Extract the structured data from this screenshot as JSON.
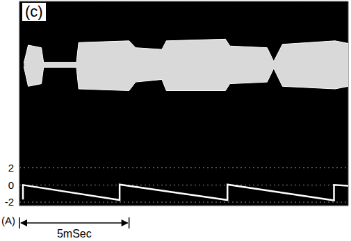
{
  "chart_data": {
    "type": "line",
    "title": "(c)",
    "y_label": "(A)",
    "xlim": [
      0,
      15
    ],
    "ylim": [
      -2.4,
      21.4
    ],
    "yticks": [
      -2,
      0,
      2
    ],
    "tick_labels": "y",
    "grid": true,
    "series": [
      {
        "type": "area",
        "color": "#ffffff",
        "x": [
          0.2,
          0.4,
          1.0,
          1.1,
          2.6,
          2.7,
          5.0,
          5.3,
          6.5,
          6.7,
          9.4,
          9.6,
          11.3,
          11.6,
          12.0,
          14.4,
          15.0
        ],
        "values": [
          [
            13.8,
            14.2
          ],
          [
            11.5,
            16.3
          ],
          [
            11.8,
            16.0
          ],
          [
            13.7,
            14.3
          ],
          [
            13.7,
            14.3
          ],
          [
            11.2,
            16.6
          ],
          [
            11.0,
            16.8
          ],
          [
            12.0,
            16.0
          ],
          [
            12.3,
            15.8
          ],
          [
            11.0,
            16.8
          ],
          [
            11.0,
            17.0
          ],
          [
            11.8,
            16.2
          ],
          [
            12.0,
            16.0
          ],
          [
            13.6,
            14.4
          ],
          [
            11.5,
            16.4
          ],
          [
            11.2,
            16.8
          ],
          [
            11.5,
            16.5
          ]
        ]
      },
      {
        "type": "line",
        "color": "#ffffff",
        "x": [
          0.16,
          0.16,
          4.57,
          4.57,
          9.49,
          9.49,
          14.35,
          14.35,
          15.0
        ],
        "values": [
          -1.7,
          0.0,
          -1.75,
          0.05,
          -1.75,
          0.05,
          -1.8,
          0.0,
          -0.1
        ]
      }
    ],
    "annotations": [
      {
        "text": "5mSec",
        "x": [
          0,
          5
        ]
      }
    ]
  }
}
